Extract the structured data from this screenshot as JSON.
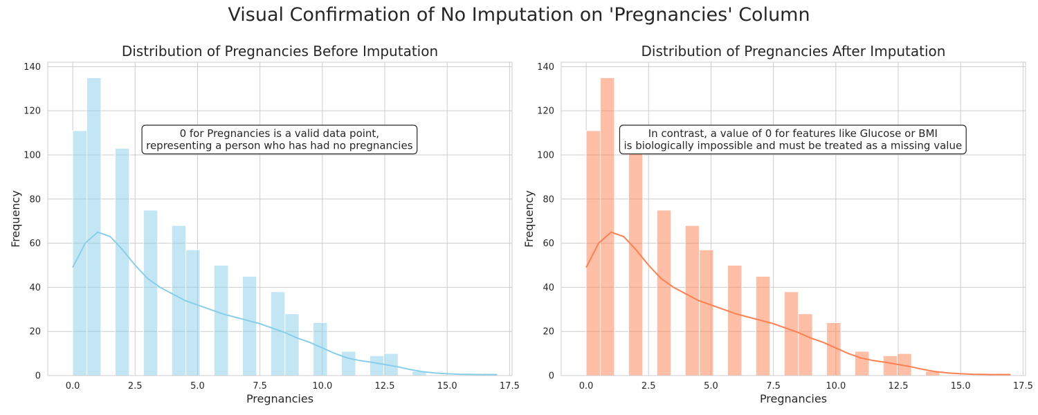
{
  "figure": {
    "suptitle": "Visual Confirmation of No Imputation on 'Pregnancies' Column"
  },
  "chart_data": [
    {
      "type": "bar",
      "title": "Distribution of Pregnancies Before Imputation",
      "xlabel": "Pregnancies",
      "ylabel": "Frequency",
      "xlim": [
        -1,
        17.6
      ],
      "ylim": [
        0,
        142
      ],
      "xticks": [
        0,
        2.5,
        5,
        7.5,
        10,
        12.5,
        15,
        17.5
      ],
      "xtick_labels": [
        "0.0",
        "2.5",
        "5.0",
        "7.5",
        "10.0",
        "12.5",
        "15.0",
        "17.5"
      ],
      "yticks": [
        0,
        20,
        40,
        60,
        80,
        100,
        120,
        140
      ],
      "ytick_labels": [
        "0",
        "20",
        "40",
        "60",
        "80",
        "100",
        "120",
        "140"
      ],
      "grid": true,
      "bar_color": "#87CEEB",
      "bar_opacity": 0.5,
      "line_color": "#87CEEB",
      "bins": [
        {
          "x0": 0.0,
          "x1": 0.567,
          "value": 111
        },
        {
          "x0": 0.567,
          "x1": 1.133,
          "value": 135
        },
        {
          "x0": 1.7,
          "x1": 2.267,
          "value": 103
        },
        {
          "x0": 2.833,
          "x1": 3.4,
          "value": 75
        },
        {
          "x0": 3.967,
          "x1": 4.533,
          "value": 68
        },
        {
          "x0": 4.533,
          "x1": 5.1,
          "value": 57
        },
        {
          "x0": 5.667,
          "x1": 6.233,
          "value": 50
        },
        {
          "x0": 6.8,
          "x1": 7.367,
          "value": 45
        },
        {
          "x0": 7.933,
          "x1": 8.5,
          "value": 38
        },
        {
          "x0": 8.5,
          "x1": 9.067,
          "value": 28
        },
        {
          "x0": 9.633,
          "x1": 10.2,
          "value": 24
        },
        {
          "x0": 10.767,
          "x1": 11.333,
          "value": 11
        },
        {
          "x0": 11.9,
          "x1": 12.467,
          "value": 9
        },
        {
          "x0": 12.467,
          "x1": 13.033,
          "value": 10
        },
        {
          "x0": 13.6,
          "x1": 14.167,
          "value": 2
        },
        {
          "x0": 16.433,
          "x1": 17.0,
          "value": 1
        }
      ],
      "kde": {
        "x": [
          0,
          0.5,
          1,
          1.5,
          2,
          2.5,
          3,
          3.5,
          4,
          4.5,
          5,
          5.5,
          6,
          6.5,
          7,
          7.5,
          8,
          8.5,
          9,
          9.5,
          10,
          10.5,
          11,
          11.5,
          12,
          12.5,
          13,
          13.5,
          14,
          14.5,
          15,
          15.5,
          16,
          16.5,
          17
        ],
        "y": [
          49,
          60,
          65,
          63,
          57,
          50,
          44,
          40,
          37,
          34,
          32,
          30,
          28,
          26.5,
          25,
          23.5,
          21.5,
          19.5,
          17,
          15,
          12.5,
          10,
          8,
          6.8,
          6,
          5,
          4,
          2.8,
          1.8,
          1.2,
          0.8,
          0.6,
          0.5,
          0.45,
          0.4
        ]
      },
      "annotation": [
        "0 for Pregnancies is a valid data point,",
        "representing a person who has had no pregnancies"
      ]
    },
    {
      "type": "bar",
      "title": "Distribution of Pregnancies After Imputation",
      "xlabel": "Pregnancies",
      "ylabel": "Frequency",
      "xlim": [
        -1,
        17.6
      ],
      "ylim": [
        0,
        142
      ],
      "xticks": [
        0,
        2.5,
        5,
        7.5,
        10,
        12.5,
        15,
        17.5
      ],
      "xtick_labels": [
        "0.0",
        "2.5",
        "5.0",
        "7.5",
        "10.0",
        "12.5",
        "15.0",
        "17.5"
      ],
      "yticks": [
        0,
        20,
        40,
        60,
        80,
        100,
        120,
        140
      ],
      "ytick_labels": [
        "0",
        "20",
        "40",
        "60",
        "80",
        "100",
        "120",
        "140"
      ],
      "grid": true,
      "bar_color": "#FF7F50",
      "bar_opacity": 0.5,
      "line_color": "#FF7F50",
      "bins": [
        {
          "x0": 0.0,
          "x1": 0.567,
          "value": 111
        },
        {
          "x0": 0.567,
          "x1": 1.133,
          "value": 135
        },
        {
          "x0": 1.7,
          "x1": 2.267,
          "value": 103
        },
        {
          "x0": 2.833,
          "x1": 3.4,
          "value": 75
        },
        {
          "x0": 3.967,
          "x1": 4.533,
          "value": 68
        },
        {
          "x0": 4.533,
          "x1": 5.1,
          "value": 57
        },
        {
          "x0": 5.667,
          "x1": 6.233,
          "value": 50
        },
        {
          "x0": 6.8,
          "x1": 7.367,
          "value": 45
        },
        {
          "x0": 7.933,
          "x1": 8.5,
          "value": 38
        },
        {
          "x0": 8.5,
          "x1": 9.067,
          "value": 28
        },
        {
          "x0": 9.633,
          "x1": 10.2,
          "value": 24
        },
        {
          "x0": 10.767,
          "x1": 11.333,
          "value": 11
        },
        {
          "x0": 11.9,
          "x1": 12.467,
          "value": 9
        },
        {
          "x0": 12.467,
          "x1": 13.033,
          "value": 10
        },
        {
          "x0": 13.6,
          "x1": 14.167,
          "value": 2
        },
        {
          "x0": 16.433,
          "x1": 17.0,
          "value": 1
        }
      ],
      "kde": {
        "x": [
          0,
          0.5,
          1,
          1.5,
          2,
          2.5,
          3,
          3.5,
          4,
          4.5,
          5,
          5.5,
          6,
          6.5,
          7,
          7.5,
          8,
          8.5,
          9,
          9.5,
          10,
          10.5,
          11,
          11.5,
          12,
          12.5,
          13,
          13.5,
          14,
          14.5,
          15,
          15.5,
          16,
          16.5,
          17
        ],
        "y": [
          49,
          60,
          65,
          63,
          57,
          50,
          44,
          40,
          37,
          34,
          32,
          30,
          28,
          26.5,
          25,
          23.5,
          21.5,
          19.5,
          17,
          15,
          12.5,
          10,
          8,
          6.8,
          6,
          5,
          4,
          2.8,
          1.8,
          1.2,
          0.8,
          0.6,
          0.5,
          0.45,
          0.4
        ]
      },
      "annotation": [
        "In contrast, a value of 0 for features like Glucose or BMI",
        "is biologically impossible and must be treated as a missing value"
      ]
    }
  ]
}
